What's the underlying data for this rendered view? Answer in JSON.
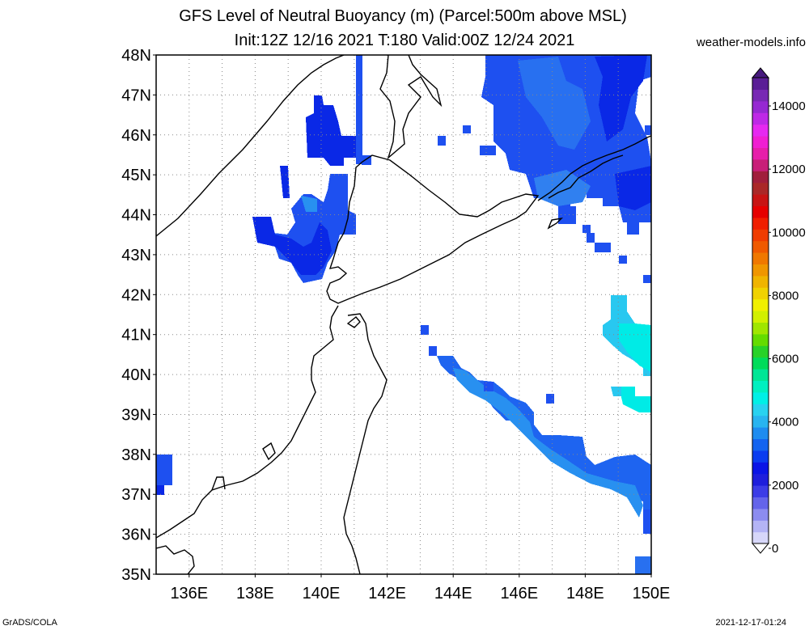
{
  "title_line1": "GFS Level of Neutral Buoyancy (m) (Parcel:500m above MSL)",
  "title_line2": "Init:12Z 12/16 2021 T:180 Valid:00Z 12/24 2021",
  "site": "weather-models.info",
  "footer_left": "GrADS/COLA",
  "footer_right": "2021-12-17-01:24",
  "lat_labels": [
    "48N",
    "47N",
    "46N",
    "45N",
    "44N",
    "43N",
    "42N",
    "41N",
    "40N",
    "39N",
    "38N",
    "37N",
    "36N",
    "35N"
  ],
  "lon_labels": [
    "136E",
    "138E",
    "140E",
    "142E",
    "144E",
    "146E",
    "148E",
    "150E"
  ],
  "colorbar": {
    "labels": [
      "14000",
      "12000",
      "10000",
      "8000",
      "6000",
      "4000",
      "2000",
      "0"
    ],
    "colors": [
      "#d7d7f9",
      "#b4b4f5",
      "#8c8cf0",
      "#6464ea",
      "#3c3ce6",
      "#1e1edc",
      "#0a14e6",
      "#0a3cf0",
      "#1464f0",
      "#1e8cf0",
      "#28b4f0",
      "#28d2f0",
      "#00f0e6",
      "#00f0c0",
      "#00e696",
      "#00dc5a",
      "#28d228",
      "#64dc00",
      "#a0e600",
      "#d2f000",
      "#f0f000",
      "#f0d200",
      "#f0b400",
      "#f09600",
      "#f07800",
      "#f05a00",
      "#f03c00",
      "#f01e00",
      "#e60000",
      "#c81414",
      "#aa2828",
      "#a01e3c",
      "#c81e78",
      "#e61eaa",
      "#f01ed2",
      "#e628f0",
      "#be28e6",
      "#9628d2",
      "#7828b4",
      "#5a1e96"
    ]
  },
  "map": {
    "lon_range": [
      135,
      150
    ],
    "lat_range": [
      35,
      48
    ]
  }
}
